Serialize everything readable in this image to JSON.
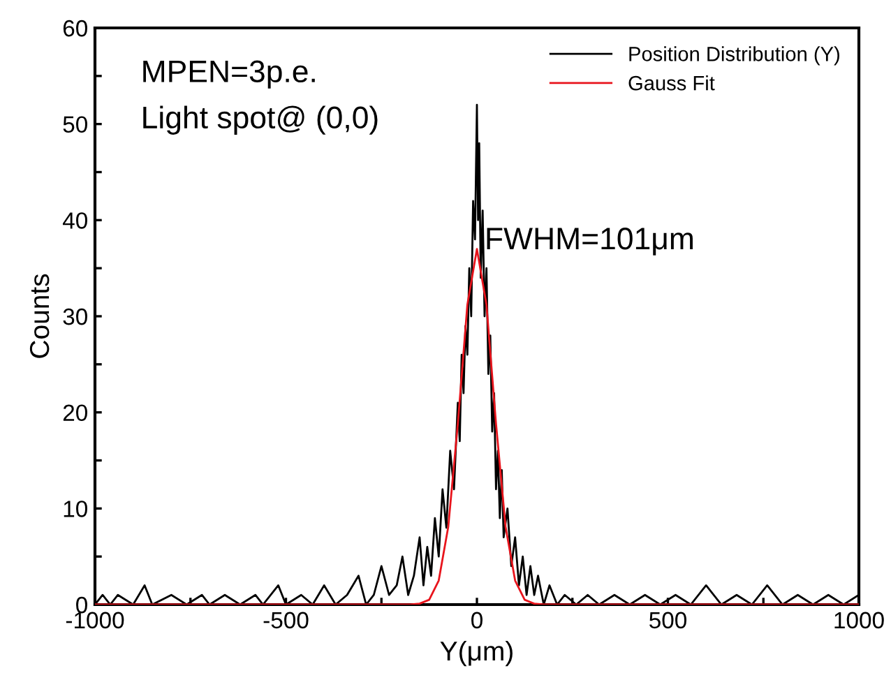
{
  "chart_data": {
    "type": "line",
    "xlabel": "Y(μm)",
    "ylabel": "Counts",
    "xlim": [
      -1000,
      1000
    ],
    "ylim": [
      0,
      60
    ],
    "xticks": [
      -1000,
      {
        "value": -750,
        "label": null
      },
      -500,
      {
        "value": -250,
        "label": null
      },
      0,
      {
        "value": 250,
        "label": null
      },
      500,
      {
        "value": 750,
        "label": null
      },
      1000
    ],
    "yticks": [
      0,
      {
        "value": 5,
        "label": null
      },
      10,
      {
        "value": 15,
        "label": null
      },
      20,
      {
        "value": 25,
        "label": null
      },
      30,
      {
        "value": 35,
        "label": null
      },
      40,
      {
        "value": 45,
        "label": null
      },
      50,
      {
        "value": 55,
        "label": null
      },
      60
    ],
    "grid": false,
    "legend": "top right",
    "marker": "none",
    "line_style": "solid",
    "annotations": [
      "MPEN=3p.e.",
      "Light spot@ (0,0)",
      "FWHM=101μm"
    ],
    "series": [
      {
        "name": "Position Distribution (Y)",
        "color": "#000000",
        "x": [
          -1000,
          -980,
          -960,
          -940,
          -900,
          -870,
          -850,
          -800,
          -760,
          -720,
          -700,
          -660,
          -620,
          -580,
          -560,
          -520,
          -500,
          -460,
          -430,
          -400,
          -370,
          -340,
          -310,
          -290,
          -270,
          -250,
          -230,
          -210,
          -195,
          -180,
          -165,
          -150,
          -140,
          -130,
          -120,
          -110,
          -100,
          -90,
          -80,
          -70,
          -60,
          -50,
          -45,
          -40,
          -35,
          -30,
          -25,
          -20,
          -15,
          -10,
          -5,
          0,
          3,
          6,
          10,
          15,
          20,
          25,
          30,
          35,
          40,
          45,
          50,
          55,
          60,
          65,
          70,
          80,
          90,
          100,
          110,
          120,
          130,
          140,
          150,
          160,
          175,
          190,
          210,
          230,
          260,
          290,
          320,
          360,
          400,
          440,
          480,
          520,
          560,
          600,
          640,
          680,
          720,
          760,
          800,
          840,
          880,
          920,
          960,
          1000
        ],
        "values": [
          0,
          1,
          0,
          1,
          0,
          2,
          0,
          1,
          0,
          1,
          0,
          1,
          0,
          1,
          0,
          2,
          0,
          1,
          0,
          2,
          0,
          1,
          3,
          0,
          1,
          4,
          1,
          2,
          5,
          1,
          3,
          7,
          2,
          6,
          3,
          9,
          5,
          12,
          8,
          16,
          12,
          21,
          17,
          26,
          22,
          29,
          26,
          35,
          30,
          42,
          38,
          52,
          40,
          48,
          34,
          41,
          30,
          35,
          24,
          28,
          18,
          22,
          12,
          16,
          9,
          14,
          7,
          10,
          4,
          7,
          2,
          5,
          1,
          4,
          1,
          3,
          0,
          2,
          0,
          1,
          0,
          1,
          0,
          1,
          0,
          1,
          0,
          1,
          0,
          2,
          0,
          1,
          0,
          2,
          0,
          1,
          0,
          1,
          0,
          1
        ]
      },
      {
        "name": "Gauss Fit",
        "color": "#e8141c",
        "x": [
          -1000,
          -200,
          -175,
          -150,
          -125,
          -100,
          -75,
          -50,
          -25,
          0,
          25,
          50,
          75,
          100,
          125,
          150,
          175,
          200,
          1000
        ],
        "values": [
          0,
          0,
          0,
          0.1,
          0.5,
          2.5,
          8.1,
          18.8,
          31.2,
          37,
          31.2,
          18.8,
          8.1,
          2.5,
          0.5,
          0.1,
          0,
          0,
          0
        ]
      }
    ]
  }
}
